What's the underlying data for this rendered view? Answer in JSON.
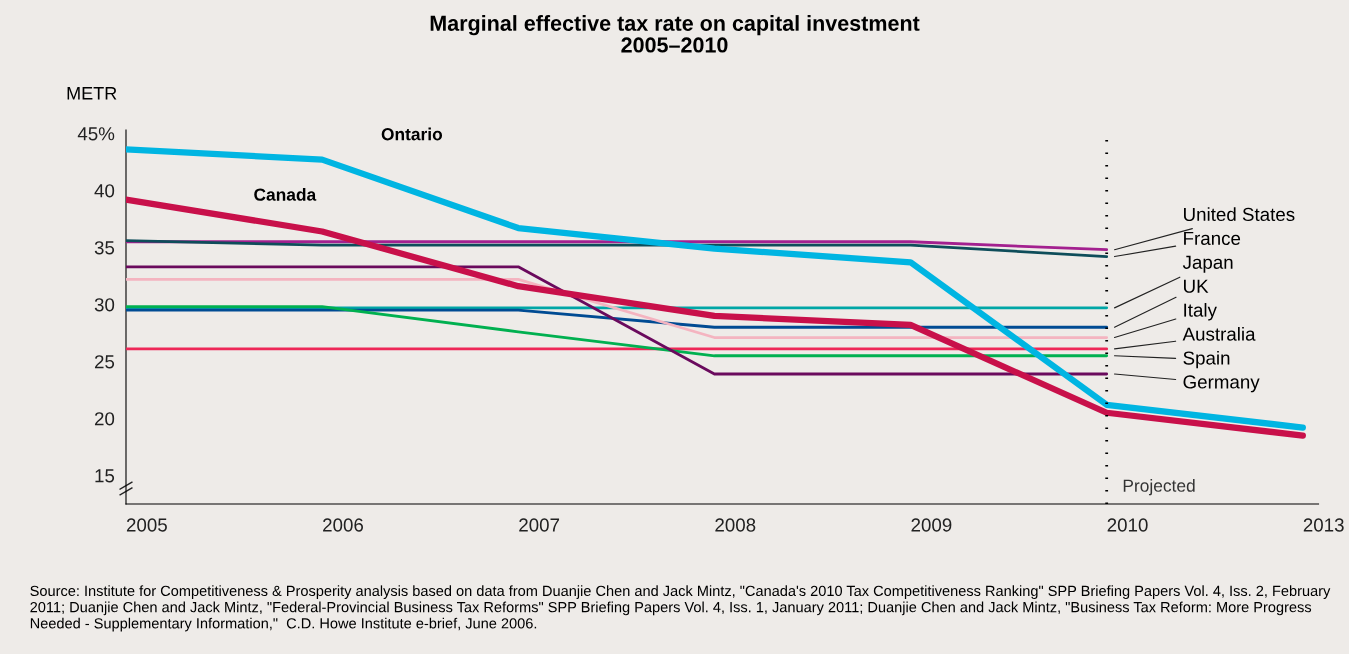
{
  "chart_data": {
    "type": "line",
    "title": "Marginal effective tax rate on capital investment\n2005–2010",
    "ylabel": "METR",
    "categories": [
      "2005",
      "2006",
      "2007",
      "2008",
      "2009",
      "2010",
      "2013"
    ],
    "series": [
      {
        "name": "Ontario",
        "color": "#00b5e2",
        "values": [
          43.6,
          42.7,
          36.7,
          34.9,
          33.7,
          21.2,
          19.2
        ]
      },
      {
        "name": "Canada",
        "color": "#c8104a",
        "values": [
          39.2,
          36.4,
          31.6,
          29.0,
          28.2,
          20.5,
          18.5
        ]
      },
      {
        "name": "United States",
        "color": "#a3208f",
        "values": [
          35.5,
          35.5,
          35.5,
          35.5,
          35.5,
          34.8,
          null
        ]
      },
      {
        "name": "France",
        "color": "#0e4d5a",
        "values": [
          35.6,
          35.2,
          35.2,
          35.2,
          35.2,
          34.2,
          null
        ]
      },
      {
        "name": "Japan",
        "color": "#00a6a6",
        "values": [
          29.7,
          29.7,
          29.7,
          29.7,
          29.7,
          29.7,
          null
        ]
      },
      {
        "name": "UK",
        "color": "#004b93",
        "values": [
          29.5,
          29.5,
          29.5,
          28.0,
          28.0,
          28.0,
          null
        ]
      },
      {
        "name": "Italy",
        "color": "#f4b4c0",
        "values": [
          32.2,
          32.2,
          32.2,
          27.1,
          27.1,
          27.1,
          null
        ]
      },
      {
        "name": "Australia",
        "color": "#ee2757",
        "values": [
          26.1,
          26.1,
          26.1,
          26.1,
          26.1,
          26.1,
          null
        ]
      },
      {
        "name": "Spain",
        "color": "#00b050",
        "values": [
          29.8,
          29.8,
          27.6,
          25.5,
          25.5,
          25.5,
          null
        ]
      },
      {
        "name": "Germany",
        "color": "#6a0a5d",
        "values": [
          33.3,
          33.3,
          33.3,
          23.9,
          23.9,
          23.9,
          null
        ]
      }
    ],
    "ylim": [
      12.5,
      45.3
    ],
    "yticks": [
      {
        "value": 15,
        "label": "15"
      },
      {
        "value": 20,
        "label": "20"
      },
      {
        "value": 25,
        "label": "25"
      },
      {
        "value": 30,
        "label": "30"
      },
      {
        "value": 35,
        "label": "35"
      },
      {
        "value": 40,
        "label": "40"
      },
      {
        "value": 45,
        "label": "45%"
      }
    ],
    "ref_lines": [
      {
        "axis": "x",
        "value": "2010",
        "label": "Projected",
        "color": "#000000",
        "line_style": "dotted"
      }
    ],
    "grid": false,
    "legend": false,
    "marker": "none",
    "line_style": "solid",
    "annotations": [
      "Source: Institute for Competitiveness & Prosperity analysis based on data from Duanjie Chen and Jack Mintz, \"Canada's 2010 Tax Competitiveness Ranking\" SPP Briefing Papers Vol. 4, Iss. 2, February 2011; Duanjie Chen and Jack Mintz, \"Federal-Provincial Business Tax Reforms\" SPP Briefing Papers Vol. 4, Iss. 1, January 2011; Duanjie Chen and Jack Mintz, \"Business Tax Reform: More Progress Needed - Supplementary Information,\"  C.D. Howe Institute e-brief, June 2006."
    ]
  }
}
